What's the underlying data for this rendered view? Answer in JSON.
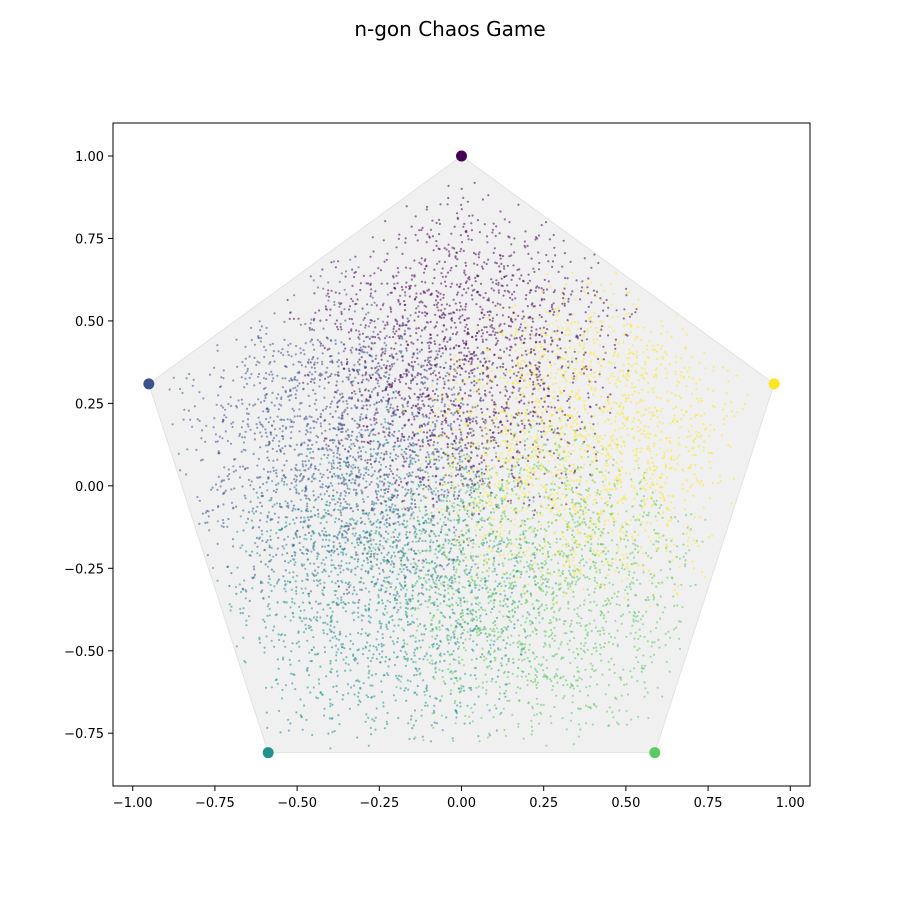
{
  "chart_data": {
    "type": "scatter",
    "title": "n-gon Chaos Game",
    "xlabel": "",
    "ylabel": "",
    "xlim": [
      -1.06,
      1.06
    ],
    "ylim": [
      -0.91,
      1.1
    ],
    "grid": false,
    "xticks": [
      -1.0,
      -0.75,
      -0.5,
      -0.25,
      0.0,
      0.25,
      0.5,
      0.75,
      1.0
    ],
    "xtick_labels": [
      "−1.00",
      "−0.75",
      "−0.50",
      "−0.25",
      "0.00",
      "0.25",
      "0.50",
      "0.75",
      "1.00"
    ],
    "yticks": [
      -0.75,
      -0.5,
      -0.25,
      0.0,
      0.25,
      0.5,
      0.75,
      1.0
    ],
    "ytick_labels": [
      "−0.75",
      "−0.50",
      "−0.25",
      "0.00",
      "0.25",
      "0.50",
      "0.75",
      "1.00"
    ],
    "polygon_fill": "#f0f0f0",
    "polygon_stroke": "#e2e2e2",
    "vertices": [
      {
        "x": 0.0,
        "y": 1.0,
        "color": "#440154"
      },
      {
        "x": -0.951,
        "y": 0.309,
        "color": "#3b528b"
      },
      {
        "x": -0.588,
        "y": -0.809,
        "color": "#21918c"
      },
      {
        "x": 0.588,
        "y": -0.809,
        "color": "#5ec962"
      },
      {
        "x": 0.951,
        "y": 0.309,
        "color": "#fde725"
      }
    ],
    "chaos_game": {
      "n_vertices": 5,
      "jump_ratio": 0.382,
      "colored_by": "target vertex"
    }
  }
}
